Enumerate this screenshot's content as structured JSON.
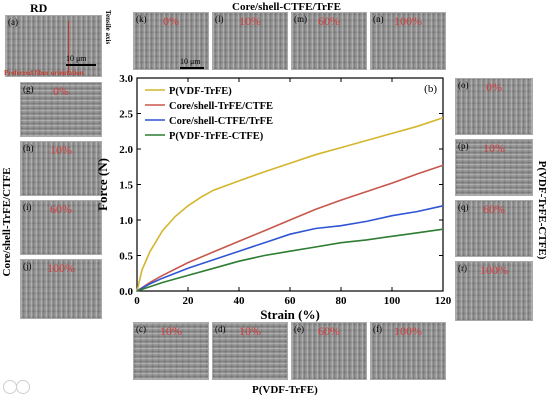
{
  "titles": {
    "rd": "RD",
    "top": "Core/shell-CTFE/TrFE",
    "left": "Core/shell-TrFE/CTFE",
    "right": "P(VDF-TrFE-CTFE)",
    "bottom": "P(VDF-TrFE)"
  },
  "rd_panel": {
    "label": "(a)",
    "tensile": "Tensile axis",
    "fiber": "Preferred fiber orientation",
    "scale": "10 μm"
  },
  "top_panels": [
    {
      "label": "(k)",
      "pct": "0%"
    },
    {
      "label": "(l)",
      "pct": "10%"
    },
    {
      "label": "(m)",
      "pct": "60%"
    },
    {
      "label": "(n)",
      "pct": "100%"
    }
  ],
  "top_scale": "10 μm",
  "left_panels": [
    {
      "label": "(g)",
      "pct": "0%"
    },
    {
      "label": "(h)",
      "pct": "10%"
    },
    {
      "label": "(i)",
      "pct": "60%"
    },
    {
      "label": "(j)",
      "pct": "100%"
    }
  ],
  "right_panels": [
    {
      "label": "(o)",
      "pct": "0%"
    },
    {
      "label": "(p)",
      "pct": "10%"
    },
    {
      "label": "(q)",
      "pct": "60%"
    },
    {
      "label": "(r)",
      "pct": "100%"
    }
  ],
  "bottom_panels": [
    {
      "label": "(c)",
      "pct": "10%"
    },
    {
      "label": "(d)",
      "pct": "10%"
    },
    {
      "label": "(e)",
      "pct": "60%"
    },
    {
      "label": "(f)",
      "pct": "100%"
    }
  ],
  "chart_data": {
    "type": "line",
    "panel_label": "(b)",
    "xlabel": "Strain (%)",
    "ylabel": "Force (N)",
    "xlim": [
      0,
      120
    ],
    "ylim": [
      0,
      3.0
    ],
    "xticks": [
      0,
      20,
      40,
      60,
      80,
      100,
      120
    ],
    "yticks": [
      0.0,
      0.5,
      1.0,
      1.5,
      2.0,
      2.5,
      3.0
    ],
    "ytick_labels": [
      "0.0",
      "0.5",
      "1.0",
      "1.5",
      "2.0",
      "2.5",
      "3.0"
    ],
    "legend_position": "top-left",
    "series": [
      {
        "name": "P(VDF-TrFE)",
        "color": "#d4b52c",
        "x": [
          0,
          2,
          5,
          10,
          15,
          20,
          25,
          30,
          40,
          50,
          60,
          70,
          80,
          90,
          100,
          110,
          120
        ],
        "y": [
          0,
          0.3,
          0.55,
          0.85,
          1.05,
          1.2,
          1.32,
          1.42,
          1.55,
          1.68,
          1.8,
          1.92,
          2.02,
          2.12,
          2.22,
          2.32,
          2.44
        ]
      },
      {
        "name": "Core/shell-TrFE/CTFE",
        "color": "#c8574b",
        "x": [
          0,
          5,
          10,
          20,
          30,
          40,
          50,
          60,
          70,
          80,
          90,
          100,
          110,
          120
        ],
        "y": [
          0,
          0.12,
          0.22,
          0.4,
          0.55,
          0.7,
          0.85,
          1.0,
          1.15,
          1.28,
          1.4,
          1.52,
          1.65,
          1.77
        ]
      },
      {
        "name": "Core/shell-CTFE/TrFE",
        "color": "#2f55d4",
        "x": [
          0,
          5,
          10,
          20,
          30,
          40,
          50,
          60,
          70,
          80,
          90,
          100,
          110,
          120
        ],
        "y": [
          0,
          0.1,
          0.18,
          0.32,
          0.44,
          0.56,
          0.68,
          0.8,
          0.88,
          0.92,
          0.98,
          1.06,
          1.12,
          1.2
        ]
      },
      {
        "name": "P(VDF-TrFE-CTFE)",
        "color": "#2e7d32",
        "x": [
          0,
          5,
          10,
          20,
          30,
          40,
          50,
          60,
          70,
          80,
          90,
          100,
          110,
          120
        ],
        "y": [
          0,
          0.06,
          0.12,
          0.22,
          0.32,
          0.42,
          0.5,
          0.56,
          0.62,
          0.68,
          0.72,
          0.77,
          0.82,
          0.87
        ]
      }
    ]
  }
}
